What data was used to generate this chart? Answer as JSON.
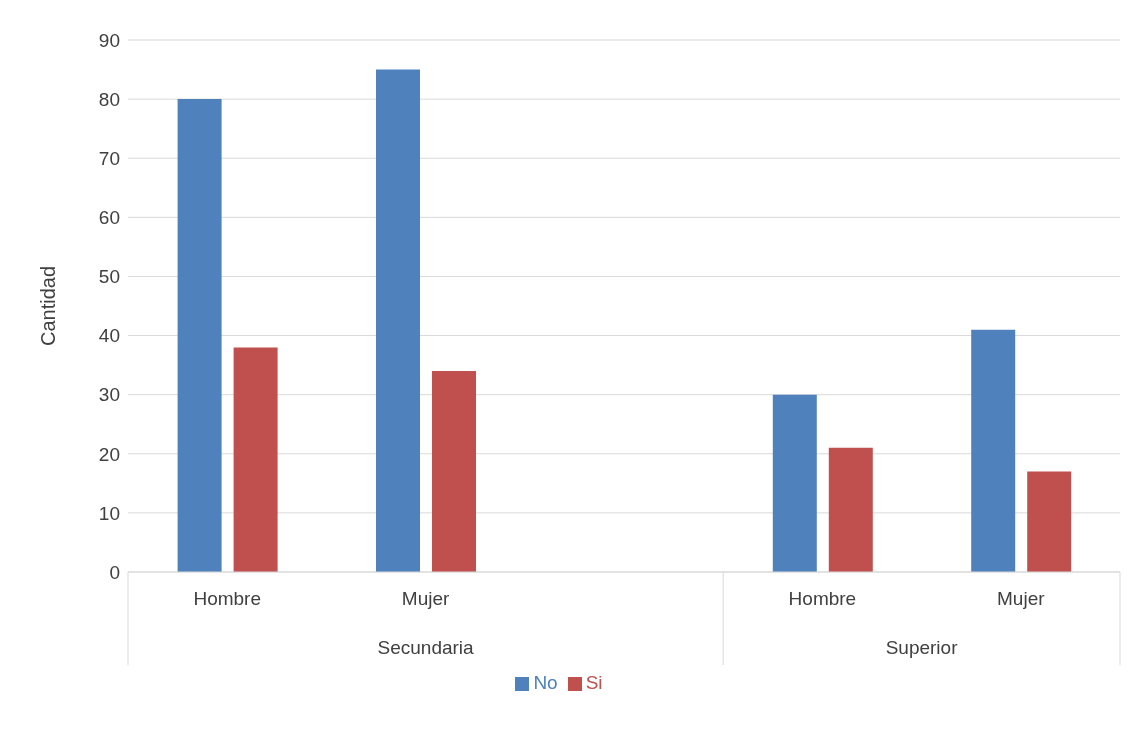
{
  "chart_data": {
    "type": "bar",
    "ylabel": "Cantidad",
    "categories": [
      "Hombre",
      "Mujer",
      null,
      "Hombre",
      "Mujer"
    ],
    "series": [
      {
        "name": "No",
        "color": "#4f81bd",
        "values": [
          80,
          85,
          null,
          30,
          41
        ]
      },
      {
        "name": "Si",
        "color": "#c0504d",
        "values": [
          38,
          34,
          null,
          21,
          17
        ]
      }
    ],
    "annotations": [
      "Secundaria",
      "Superior"
    ],
    "ylim": [
      0,
      90
    ],
    "yticks": [
      0,
      10,
      20,
      30,
      40,
      50,
      60,
      70,
      80,
      90
    ],
    "grid": "y",
    "legend": "bottom"
  }
}
